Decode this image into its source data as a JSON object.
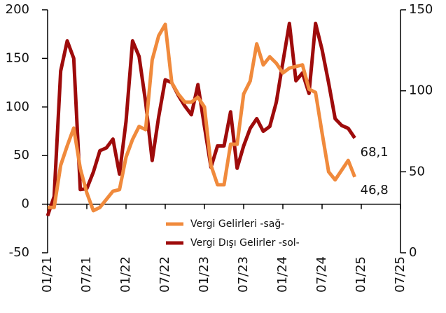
{
  "chart_data": {
    "type": "line",
    "categories": [
      "01/21",
      null,
      null,
      null,
      null,
      null,
      "07/21",
      null,
      null,
      null,
      null,
      null,
      "01/22",
      null,
      null,
      null,
      null,
      null,
      "07/22",
      null,
      null,
      null,
      null,
      null,
      "01/23",
      null,
      null,
      null,
      null,
      null,
      "07/23",
      null,
      null,
      null,
      null,
      null,
      "01/24",
      null,
      null,
      null,
      null,
      null,
      "07/24",
      null,
      null,
      null,
      null,
      null,
      "01/25",
      null,
      null,
      null,
      null,
      null,
      "07/25"
    ],
    "series": [
      {
        "name": "Vergi Dışı Gelirler -sol-",
        "color": "#9e0b0b",
        "axis": "y",
        "values": [
          -12,
          8,
          137,
          168,
          150,
          15,
          16,
          33,
          55,
          58,
          67,
          31,
          85,
          168,
          152,
          105,
          45,
          90,
          128,
          125,
          112,
          101,
          92,
          123,
          80,
          38,
          60,
          60,
          95,
          37,
          60,
          78,
          88,
          75,
          80,
          105,
          146,
          186,
          127,
          135,
          114,
          186,
          159,
          125,
          88,
          81,
          78,
          68.1,
          null,
          null,
          null,
          null,
          null,
          null,
          null
        ],
        "value_labels": [
          null,
          null,
          null,
          null,
          null,
          null,
          null,
          null,
          null,
          null,
          null,
          null,
          null,
          null,
          null,
          null,
          null,
          null,
          null,
          null,
          null,
          null,
          null,
          null,
          null,
          null,
          null,
          null,
          null,
          null,
          null,
          null,
          null,
          null,
          null,
          null,
          null,
          null,
          null,
          null,
          null,
          null,
          null,
          null,
          null,
          null,
          null,
          "68,1",
          null,
          null,
          null,
          null,
          null,
          null,
          null
        ]
      },
      {
        "name": "Vergi Gelirleri -sağ-",
        "color": "#f08a3c",
        "axis": "y2",
        "values": [
          28,
          28,
          54,
          66,
          77,
          52,
          37,
          26,
          28,
          33,
          38,
          39,
          59,
          70,
          78,
          76,
          119,
          134,
          141,
          105,
          98,
          93,
          93,
          96,
          90,
          54,
          42,
          42,
          67,
          67,
          98,
          106,
          129,
          116,
          121,
          117,
          111,
          114,
          115,
          116,
          101,
          99,
          74,
          50,
          45,
          51,
          57,
          46.8,
          null,
          null,
          null,
          null,
          null,
          null,
          null
        ],
        "value_labels": [
          null,
          null,
          null,
          null,
          null,
          null,
          null,
          null,
          null,
          null,
          null,
          null,
          null,
          null,
          null,
          null,
          null,
          null,
          null,
          null,
          null,
          null,
          null,
          null,
          null,
          null,
          null,
          null,
          null,
          null,
          null,
          null,
          null,
          null,
          null,
          null,
          null,
          null,
          null,
          null,
          null,
          null,
          null,
          null,
          null,
          null,
          null,
          "46,8",
          null,
          null,
          null,
          null,
          null,
          null,
          null
        ]
      }
    ],
    "ylim": [
      -50,
      200
    ],
    "yticks": [
      -50,
      0,
      50,
      100,
      150,
      200
    ],
    "y2lim": [
      0,
      150
    ],
    "y2ticks": [
      0,
      50,
      100,
      150
    ],
    "legend_order": [
      1,
      0
    ]
  }
}
